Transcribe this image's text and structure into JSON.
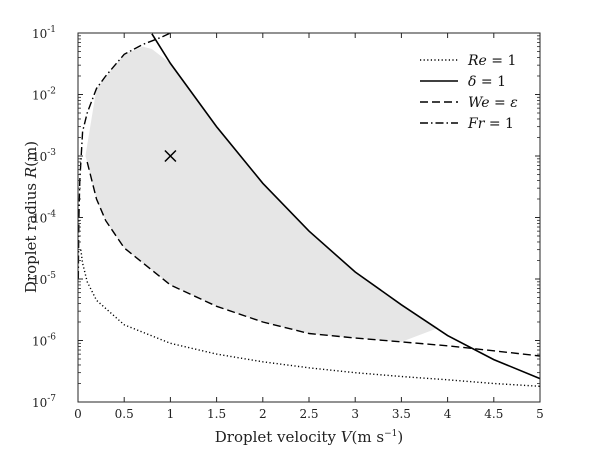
{
  "chart_data": {
    "type": "line",
    "title": "",
    "xlabel": "Droplet velocity V(m s⁻¹)",
    "ylabel": "Droplet radius R(m)",
    "xlim": [
      0,
      5
    ],
    "ylim": [
      1e-07,
      0.1
    ],
    "yscale": "log",
    "grid": false,
    "legend_position": "top-right",
    "x_ticks": [
      "0",
      "0.5",
      "1",
      "1.5",
      "2",
      "2.5",
      "3",
      "3.5",
      "4",
      "4.5",
      "5"
    ],
    "y_ticks": [
      {
        "base": "10",
        "exp": "-7"
      },
      {
        "base": "10",
        "exp": "-6"
      },
      {
        "base": "10",
        "exp": "-5"
      },
      {
        "base": "10",
        "exp": "-4"
      },
      {
        "base": "10",
        "exp": "-3"
      },
      {
        "base": "10",
        "exp": "-2"
      },
      {
        "base": "10",
        "exp": "-1"
      }
    ],
    "series": [
      {
        "name": "Re = 1",
        "style": "dotted",
        "x": [
          0.03,
          0.05,
          0.1,
          0.2,
          0.5,
          1,
          1.5,
          2,
          2.5,
          3,
          3.5,
          4,
          4.5,
          5
        ],
        "y": [
          3e-05,
          1.8e-05,
          9e-06,
          4.5e-06,
          1.8e-06,
          9e-07,
          6e-07,
          4.5e-07,
          3.6e-07,
          3e-07,
          2.6e-07,
          2.3e-07,
          2e-07,
          1.8e-07
        ]
      },
      {
        "name": "δ = 1",
        "style": "solid",
        "x": [
          0.8,
          1,
          1.5,
          2,
          2.5,
          3,
          3.5,
          4,
          4.5,
          5
        ],
        "y": [
          0.097,
          0.032,
          0.003,
          0.00036,
          6e-05,
          1.3e-05,
          3.8e-06,
          1.2e-06,
          4.9e-07,
          2.4e-07
        ]
      },
      {
        "name": "We = ε",
        "style": "dashed",
        "x": [
          0.1,
          0.2,
          0.3,
          0.5,
          1,
          1.5,
          2,
          2.5,
          3,
          3.5,
          4,
          4.5,
          5
        ],
        "y": [
          0.0008,
          0.0002,
          8.9e-05,
          3.2e-05,
          8e-06,
          3.6e-06,
          2e-06,
          1.3e-06,
          1.1e-06,
          9.5e-07,
          8.2e-07,
          6.8e-07,
          5.6e-07
        ]
      },
      {
        "name": "Fr = 1",
        "style": "dashdot",
        "x": [
          0.003,
          0.005,
          0.01,
          0.02,
          0.05,
          0.1,
          0.2,
          0.3,
          0.5,
          0.7,
          0.9,
          1.0
        ],
        "y": [
          1e-05,
          2.5e-05,
          0.0001,
          0.0004,
          0.0025,
          0.005,
          0.0125,
          0.02,
          0.045,
          0.065,
          0.085,
          0.1
        ]
      }
    ],
    "shaded_region": {
      "description": "region between We = epsilon (lower), delta = 1 (upper) and Fr = 1 (left)",
      "color": "#e6e6e6",
      "boundary": [
        {
          "x": 0.08,
          "y": 0.001
        },
        {
          "x": 0.2,
          "y": 0.0125
        },
        {
          "x": 0.5,
          "y": 0.045
        },
        {
          "x": 0.7,
          "y": 0.06
        },
        {
          "x": 0.8,
          "y": 0.055
        },
        {
          "x": 1,
          "y": 0.032
        },
        {
          "x": 1.5,
          "y": 0.003
        },
        {
          "x": 2,
          "y": 0.00036
        },
        {
          "x": 2.5,
          "y": 6e-05
        },
        {
          "x": 3,
          "y": 1.3e-05
        },
        {
          "x": 3.5,
          "y": 3.8e-06
        },
        {
          "x": 3.9,
          "y": 1.6e-06
        },
        {
          "x": 3.5,
          "y": 9.5e-07
        },
        {
          "x": 3,
          "y": 1.1e-06
        },
        {
          "x": 2.5,
          "y": 1.3e-06
        },
        {
          "x": 2,
          "y": 2e-06
        },
        {
          "x": 1.5,
          "y": 3.6e-06
        },
        {
          "x": 1,
          "y": 8e-06
        },
        {
          "x": 0.5,
          "y": 3.2e-05
        },
        {
          "x": 0.3,
          "y": 8.9e-05
        },
        {
          "x": 0.2,
          "y": 0.0002
        },
        {
          "x": 0.1,
          "y": 0.0008
        }
      ]
    },
    "marker": {
      "x": 1,
      "y": 0.001,
      "symbol": "x"
    },
    "colors": {
      "line": "#000000",
      "shade": "#e6e6e6",
      "axes": "#262626"
    }
  }
}
